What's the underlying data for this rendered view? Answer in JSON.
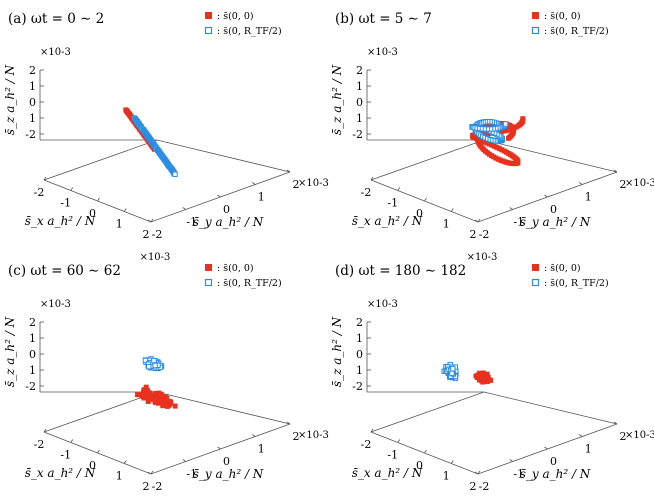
{
  "colors": {
    "red": "#e8311f",
    "blue": "#2a8ce3",
    "axis": "#555555",
    "text": "#000000"
  },
  "chart_data": [
    {
      "type": "scatter",
      "title": "(a) ωt = 0 ∼ 2",
      "legend": [
        {
          "label": ": s̄(0, 0)",
          "marker": "filled-square",
          "color": "#e8311f"
        },
        {
          "label": ": s̄(0, R_TF/2)",
          "marker": "open-square",
          "color": "#2a8ce3"
        }
      ],
      "xlabel": "s̄_x a_h² / N",
      "ylabel": "s̄_y a_h² / N",
      "zlabel": "s̄_z a_h² / N",
      "x_ticks": [
        "-2",
        "-1",
        "0",
        "1",
        "2"
      ],
      "y_ticks": [
        "-2",
        "-1",
        "0",
        "1",
        "2"
      ],
      "z_ticks": [
        "2",
        "1",
        "0",
        "1",
        "-2"
      ],
      "exponent": "×10-3",
      "xlim": [
        -2,
        2
      ],
      "ylim": [
        -2,
        2
      ],
      "zlim": [
        -2,
        2
      ],
      "series": [
        {
          "name": "s̄(0,0)",
          "kind": "line-cloud",
          "points": [
            [
              -0.35,
              -0.55,
              1.6
            ],
            [
              -0.1,
              -0.3,
              0.7
            ],
            [
              0.15,
              -0.05,
              -0.3
            ]
          ]
        },
        {
          "name": "s̄(0,R_TF/2)",
          "kind": "line-cloud",
          "points": [
            [
              -0.2,
              -0.4,
              1.2
            ],
            [
              0.2,
              0.05,
              -0.2
            ],
            [
              0.5,
              0.3,
              -1.5
            ]
          ]
        }
      ]
    },
    {
      "type": "scatter",
      "title": "(b) ωt = 5 ∼ 7",
      "legend": [
        {
          "label": ": s̄(0, 0)",
          "marker": "filled-square",
          "color": "#e8311f"
        },
        {
          "label": ": s̄(0, R_TF/2)",
          "marker": "open-square",
          "color": "#2a8ce3"
        }
      ],
      "xlabel": "s̄_x a_h² / N",
      "ylabel": "s̄_y a_h² / N",
      "zlabel": "s̄_z a_h² / N",
      "x_ticks": [
        "-2",
        "-1",
        "0",
        "1",
        "2"
      ],
      "y_ticks": [
        "-2",
        "-1",
        "0",
        "1",
        "2"
      ],
      "z_ticks": [
        "2",
        "1",
        "0",
        "1",
        "-2"
      ],
      "exponent": "×10-3",
      "xlim": [
        -2,
        2
      ],
      "ylim": [
        -2,
        2
      ],
      "zlim": [
        -2,
        2
      ],
      "series": [
        {
          "name": "s̄(0,0)",
          "kind": "spiral",
          "center": [
            0.4,
            0.2,
            0.2
          ],
          "radius": 0.9,
          "zspan": 2.6
        },
        {
          "name": "s̄(0,R_TF/2)",
          "kind": "spiral",
          "center": [
            0.2,
            0.1,
            0.6
          ],
          "radius": 0.6,
          "zspan": 1.0
        }
      ]
    },
    {
      "type": "scatter",
      "title": "(c) ωt = 60 ∼ 62",
      "legend": [
        {
          "label": ": s̄(0, 0)",
          "marker": "filled-square",
          "color": "#e8311f"
        },
        {
          "label": ": s̄(0, R_TF/2)",
          "marker": "open-square",
          "color": "#2a8ce3"
        }
      ],
      "xlabel": "s̄_x a_h² / N",
      "ylabel": "s̄_y a_h² / N",
      "zlabel": "s̄_z a_h² / N",
      "x_ticks": [
        "-2",
        "-1",
        "0",
        "1",
        "2"
      ],
      "y_ticks": [
        "-2",
        "-1",
        "0",
        "1",
        "2"
      ],
      "z_ticks": [
        "2",
        "1",
        "0",
        "1",
        "-2"
      ],
      "exponent": "×10-3",
      "xlim": [
        -2,
        2
      ],
      "ylim": [
        -2,
        2
      ],
      "zlim": [
        -2,
        2
      ],
      "series": [
        {
          "name": "s̄(0,0)",
          "kind": "cluster",
          "center": [
            -0.1,
            0.2,
            -0.4
          ],
          "spread": [
            0.8,
            0.15,
            0.35
          ]
        },
        {
          "name": "s̄(0,R_TF/2)",
          "kind": "cluster",
          "center": [
            -0.1,
            0.1,
            1.25
          ],
          "spread": [
            0.4,
            0.1,
            0.25
          ]
        }
      ]
    },
    {
      "type": "scatter",
      "title": "(d) ωt = 180 ∼ 182",
      "legend": [
        {
          "label": ": s̄(0, 0)",
          "marker": "filled-square",
          "color": "#e8311f"
        },
        {
          "label": ": s̄(0, R_TF/2)",
          "marker": "open-square",
          "color": "#2a8ce3"
        }
      ],
      "xlabel": "s̄_x a_h² / N",
      "ylabel": "s̄_y a_h² / N",
      "zlabel": "s̄_z a_h² / N",
      "x_ticks": [
        "-2",
        "-1",
        "0",
        "1",
        "2"
      ],
      "y_ticks": [
        "-2",
        "-1",
        "0",
        "1",
        "2"
      ],
      "z_ticks": [
        "2",
        "1",
        "0",
        "1",
        "-2"
      ],
      "exponent": "×10-3",
      "xlim": [
        -2,
        2
      ],
      "ylim": [
        -2,
        2
      ],
      "zlim": [
        -2,
        2
      ],
      "series": [
        {
          "name": "s̄(0,0)",
          "kind": "cluster",
          "center": [
            0.5,
            -0.3,
            1.15
          ],
          "spread": [
            0.3,
            0.1,
            0.25
          ]
        },
        {
          "name": "s̄(0,R_TF/2)",
          "kind": "cluster",
          "center": [
            -0.7,
            -0.3,
            0.8
          ],
          "spread": [
            0.3,
            0.1,
            0.35
          ]
        }
      ]
    }
  ]
}
